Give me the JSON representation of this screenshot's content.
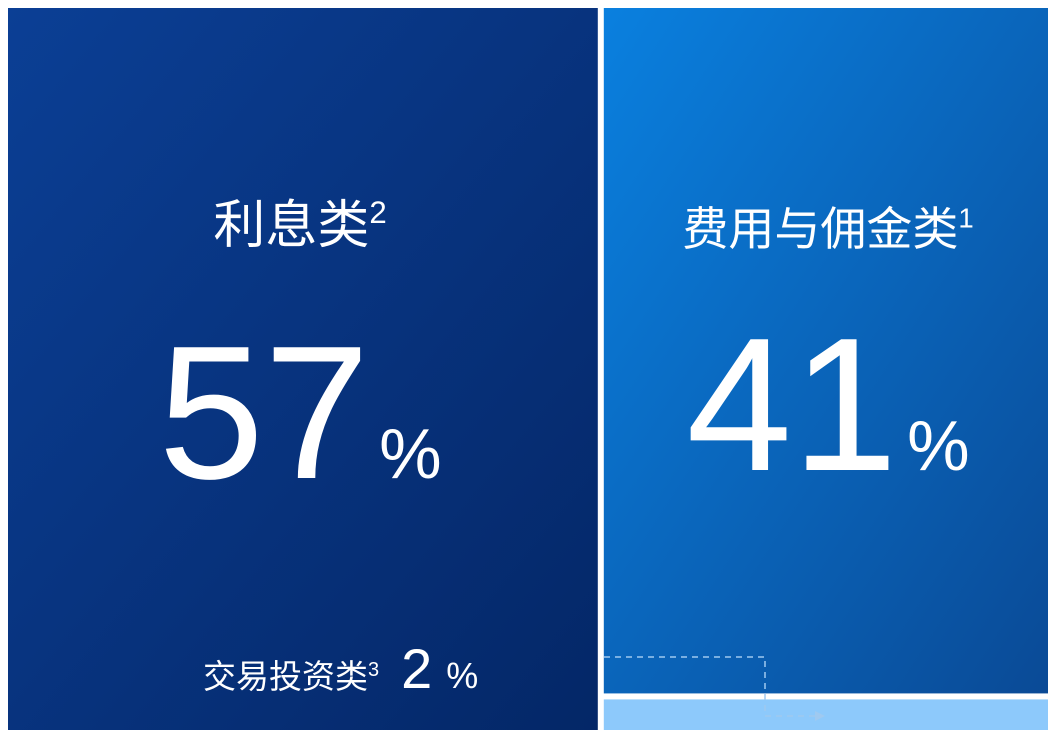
{
  "chart_data": {
    "type": "treemap",
    "categories": [
      "利息类",
      "费用与佣金类",
      "交易投资类"
    ],
    "footnotes": [
      "2",
      "1",
      "3"
    ],
    "values": [
      57,
      41,
      2
    ],
    "unit": "%",
    "colors": [
      [
        "#0b3f95",
        "#042767"
      ],
      [
        "#0a80df",
        "#0a4a96"
      ],
      [
        "#8dc9fb",
        "#8dc9fb"
      ]
    ]
  }
}
